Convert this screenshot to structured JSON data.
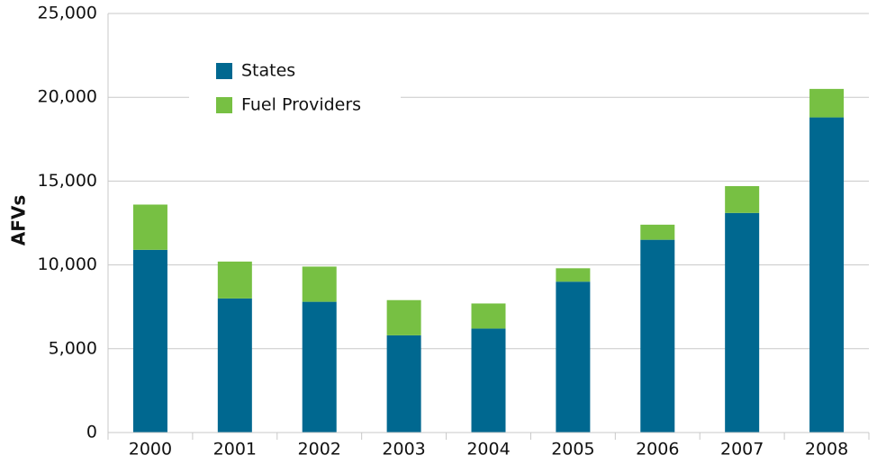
{
  "chart_data": {
    "type": "stacked_bar",
    "y_label": "AFVs",
    "categories": [
      "2000",
      "2001",
      "2002",
      "2003",
      "2004",
      "2005",
      "2006",
      "2007",
      "2008"
    ],
    "series": [
      {
        "name": "States",
        "color": "#006890",
        "values": [
          10900,
          8000,
          7800,
          5800,
          6200,
          9000,
          11500,
          13100,
          18800
        ]
      },
      {
        "name": "Fuel Providers",
        "color": "#77c043",
        "values": [
          2700,
          2200,
          2100,
          2100,
          1500,
          800,
          900,
          1600,
          1700
        ]
      }
    ],
    "ylim": [
      0,
      25000
    ],
    "yticks": [
      0,
      {
        "value": 5000,
        "label": "5,000"
      },
      {
        "value": 10000,
        "label": "10,000"
      },
      {
        "value": 15000,
        "label": "15,000"
      },
      {
        "value": 20000,
        "label": "20,000"
      },
      {
        "value": 25000,
        "label": "25,000"
      }
    ],
    "grid": true,
    "legend": "upper left"
  }
}
